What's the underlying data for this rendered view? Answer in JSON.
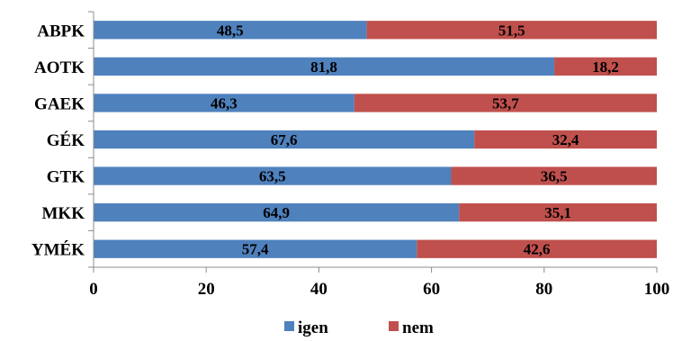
{
  "chart_data": {
    "type": "bar",
    "orientation": "horizontal",
    "stacked": true,
    "categories": [
      "ABPK",
      "AOTK",
      "GAEK",
      "GÉK",
      "GTK",
      "MKK",
      "YMÉK"
    ],
    "series": [
      {
        "name": "igen",
        "color": "#4F81BD",
        "values": [
          48.5,
          81.8,
          46.3,
          67.6,
          63.5,
          64.9,
          57.4
        ],
        "labels": [
          "48,5",
          "81,8",
          "46,3",
          "67,6",
          "63,5",
          "64,9",
          "57,4"
        ]
      },
      {
        "name": "nem",
        "color": "#C0504D",
        "values": [
          51.5,
          18.2,
          53.7,
          32.4,
          36.5,
          35.1,
          42.6
        ],
        "labels": [
          "51,5",
          "18,2",
          "53,7",
          "32,4",
          "36,5",
          "35,1",
          "42,6"
        ]
      }
    ],
    "xlim": [
      0,
      100
    ],
    "x_ticks": [
      0,
      20,
      40,
      60,
      80,
      100
    ],
    "x_tick_labels": [
      "0",
      "20",
      "40",
      "60",
      "80",
      "100"
    ],
    "grid": false,
    "legend_position": "bottom",
    "title": "",
    "xlabel": "",
    "ylabel": ""
  }
}
